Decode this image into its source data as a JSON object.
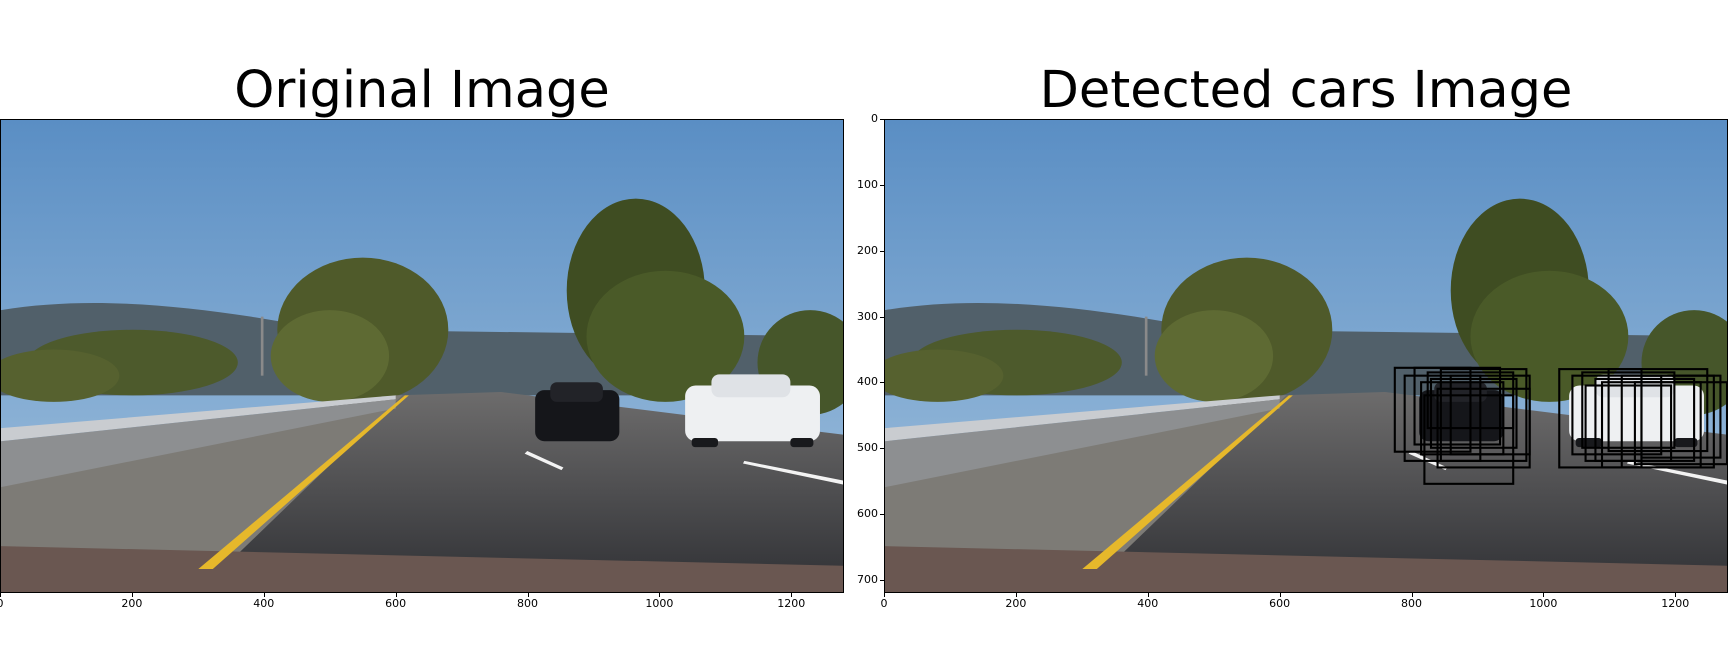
{
  "panels": {
    "left": {
      "title": "Original Image"
    },
    "right": {
      "title": "Detected cars Image"
    }
  },
  "axes": {
    "x_ticks": [
      "0",
      "200",
      "400",
      "600",
      "800",
      "1000",
      "1200"
    ],
    "y_ticks": [
      "0",
      "100",
      "200",
      "300",
      "400",
      "500",
      "600",
      "700"
    ],
    "x_range": [
      0,
      1280
    ],
    "y_range": [
      0,
      720
    ]
  },
  "scene": {
    "description_colors": {
      "sky": "#5f90c2",
      "road": "#3c3d41",
      "lane_yellow": "#e6b82b",
      "tree": "#4f5a2a",
      "box": "#000000"
    }
  },
  "detections": {
    "car_1": [
      [
        775,
        378,
        890,
        506
      ],
      [
        790,
        390,
        905,
        520
      ],
      [
        805,
        378,
        935,
        495
      ],
      [
        825,
        385,
        955,
        470
      ],
      [
        815,
        400,
        940,
        510
      ],
      [
        830,
        395,
        960,
        500
      ],
      [
        845,
        380,
        975,
        520
      ],
      [
        820,
        420,
        955,
        555
      ],
      [
        840,
        410,
        980,
        530
      ],
      [
        860,
        390,
        980,
        510
      ]
    ],
    "car_2": [
      [
        1025,
        380,
        1150,
        530
      ],
      [
        1045,
        390,
        1180,
        510
      ],
      [
        1060,
        385,
        1200,
        500
      ],
      [
        1080,
        395,
        1230,
        520
      ],
      [
        1100,
        380,
        1250,
        505
      ],
      [
        1120,
        390,
        1260,
        530
      ],
      [
        1140,
        400,
        1280,
        525
      ],
      [
        1065,
        405,
        1195,
        520
      ],
      [
        1090,
        400,
        1240,
        530
      ],
      [
        1150,
        390,
        1270,
        515
      ]
    ]
  }
}
